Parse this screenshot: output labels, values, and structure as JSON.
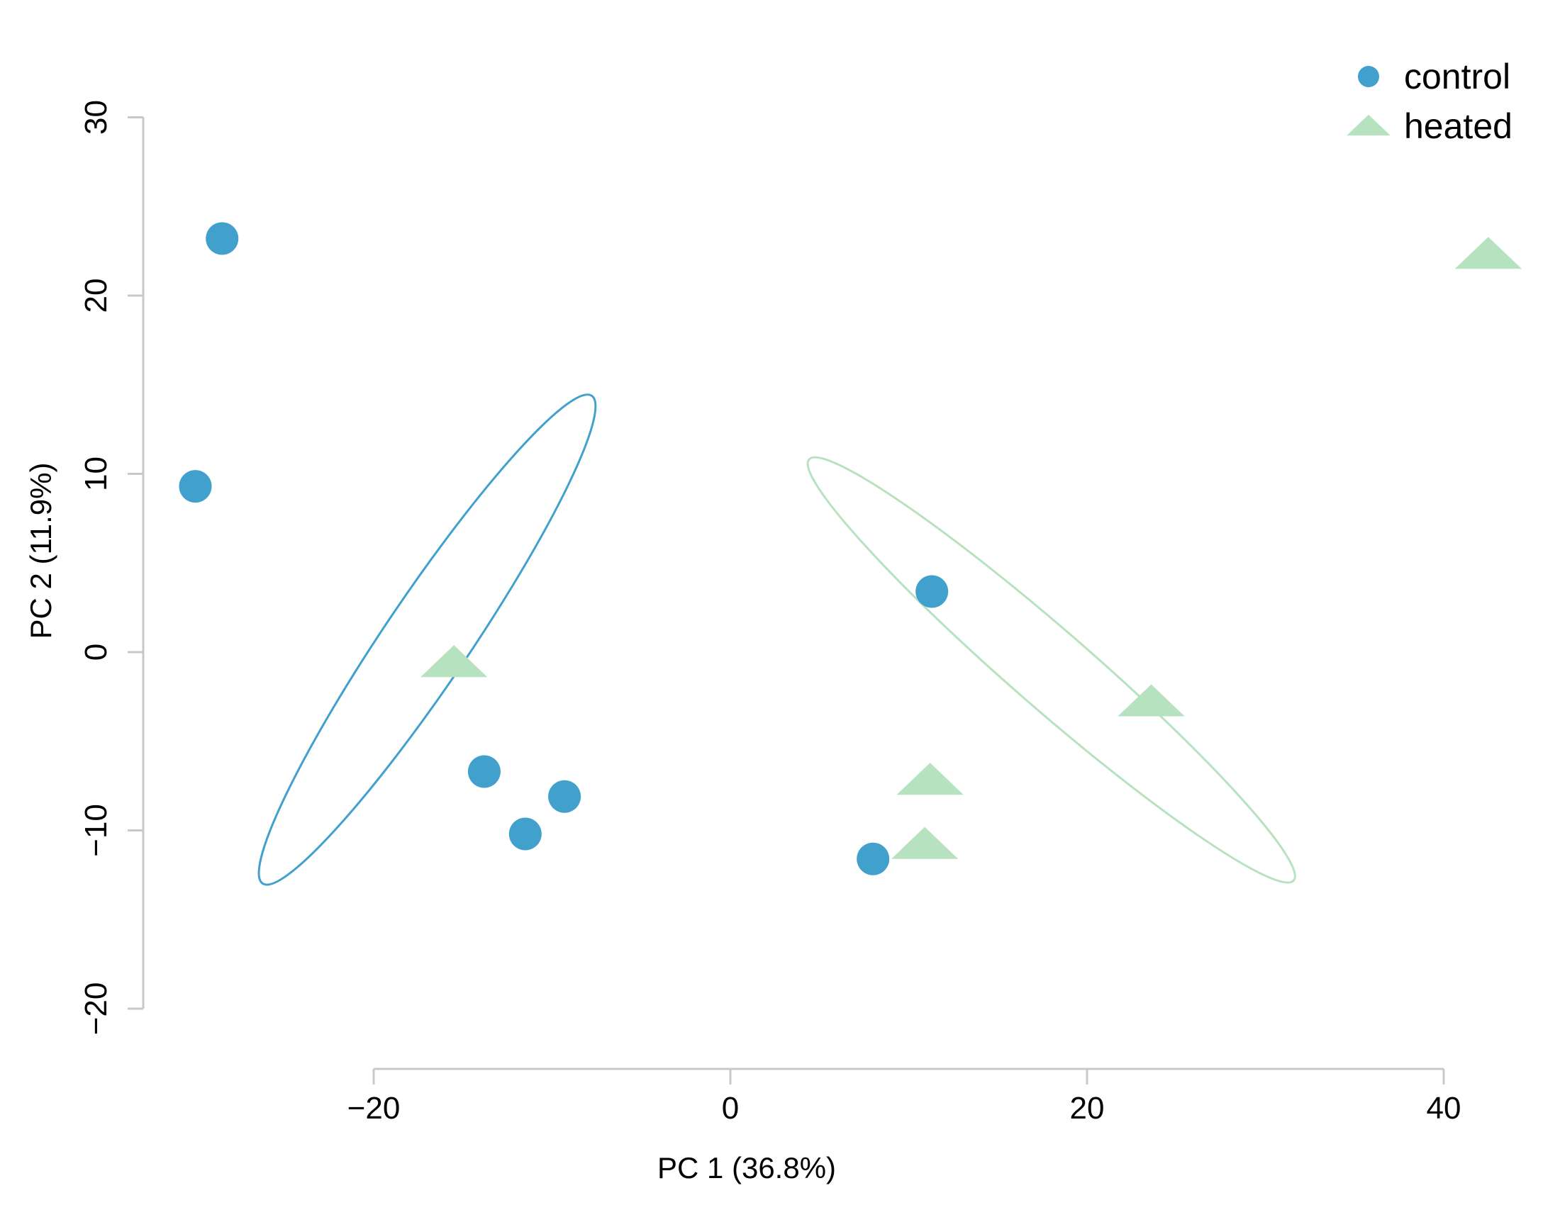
{
  "chart_data": {
    "type": "scatter",
    "xlabel": "PC 1 (36.8%)",
    "ylabel": "PC 2 (11.9%)",
    "xlim": [
      -30,
      42
    ],
    "ylim": [
      -20,
      30
    ],
    "xticks": [
      -20,
      0,
      20,
      40
    ],
    "yticks": [
      -20,
      -10,
      0,
      10,
      20,
      30
    ],
    "xtick_labels": [
      "−20",
      "0",
      "20",
      "40"
    ],
    "ytick_labels": [
      "−20",
      "−10",
      "0",
      "10",
      "20",
      "30"
    ],
    "grid": false,
    "legend_position": "top-right",
    "series": [
      {
        "name": "control",
        "marker": "circle",
        "color": "#41A0CC",
        "points": [
          {
            "x": -28.5,
            "y": 23.2
          },
          {
            "x": -30.0,
            "y": 9.3
          },
          {
            "x": -13.8,
            "y": -6.7
          },
          {
            "x": -11.5,
            "y": -10.2
          },
          {
            "x": -9.3,
            "y": -8.1
          },
          {
            "x": 11.3,
            "y": 3.4
          },
          {
            "x": 8.0,
            "y": -11.6
          }
        ],
        "ellipse": {
          "cx": -17.0,
          "cy": 0.7,
          "rx": 16.5,
          "ry": 2.4,
          "angle_deg": -56
        }
      },
      {
        "name": "heated",
        "marker": "triangle",
        "color": "#B7E2BF",
        "points": [
          {
            "x": -15.5,
            "y": -0.6
          },
          {
            "x": 11.2,
            "y": -7.2
          },
          {
            "x": 10.9,
            "y": -10.8
          },
          {
            "x": 23.6,
            "y": -2.8
          },
          {
            "x": 42.5,
            "y": 22.3
          }
        ],
        "ellipse": {
          "cx": 18.0,
          "cy": -1.0,
          "rx": 18.0,
          "ry": 2.2,
          "angle_deg": 41
        }
      }
    ]
  }
}
